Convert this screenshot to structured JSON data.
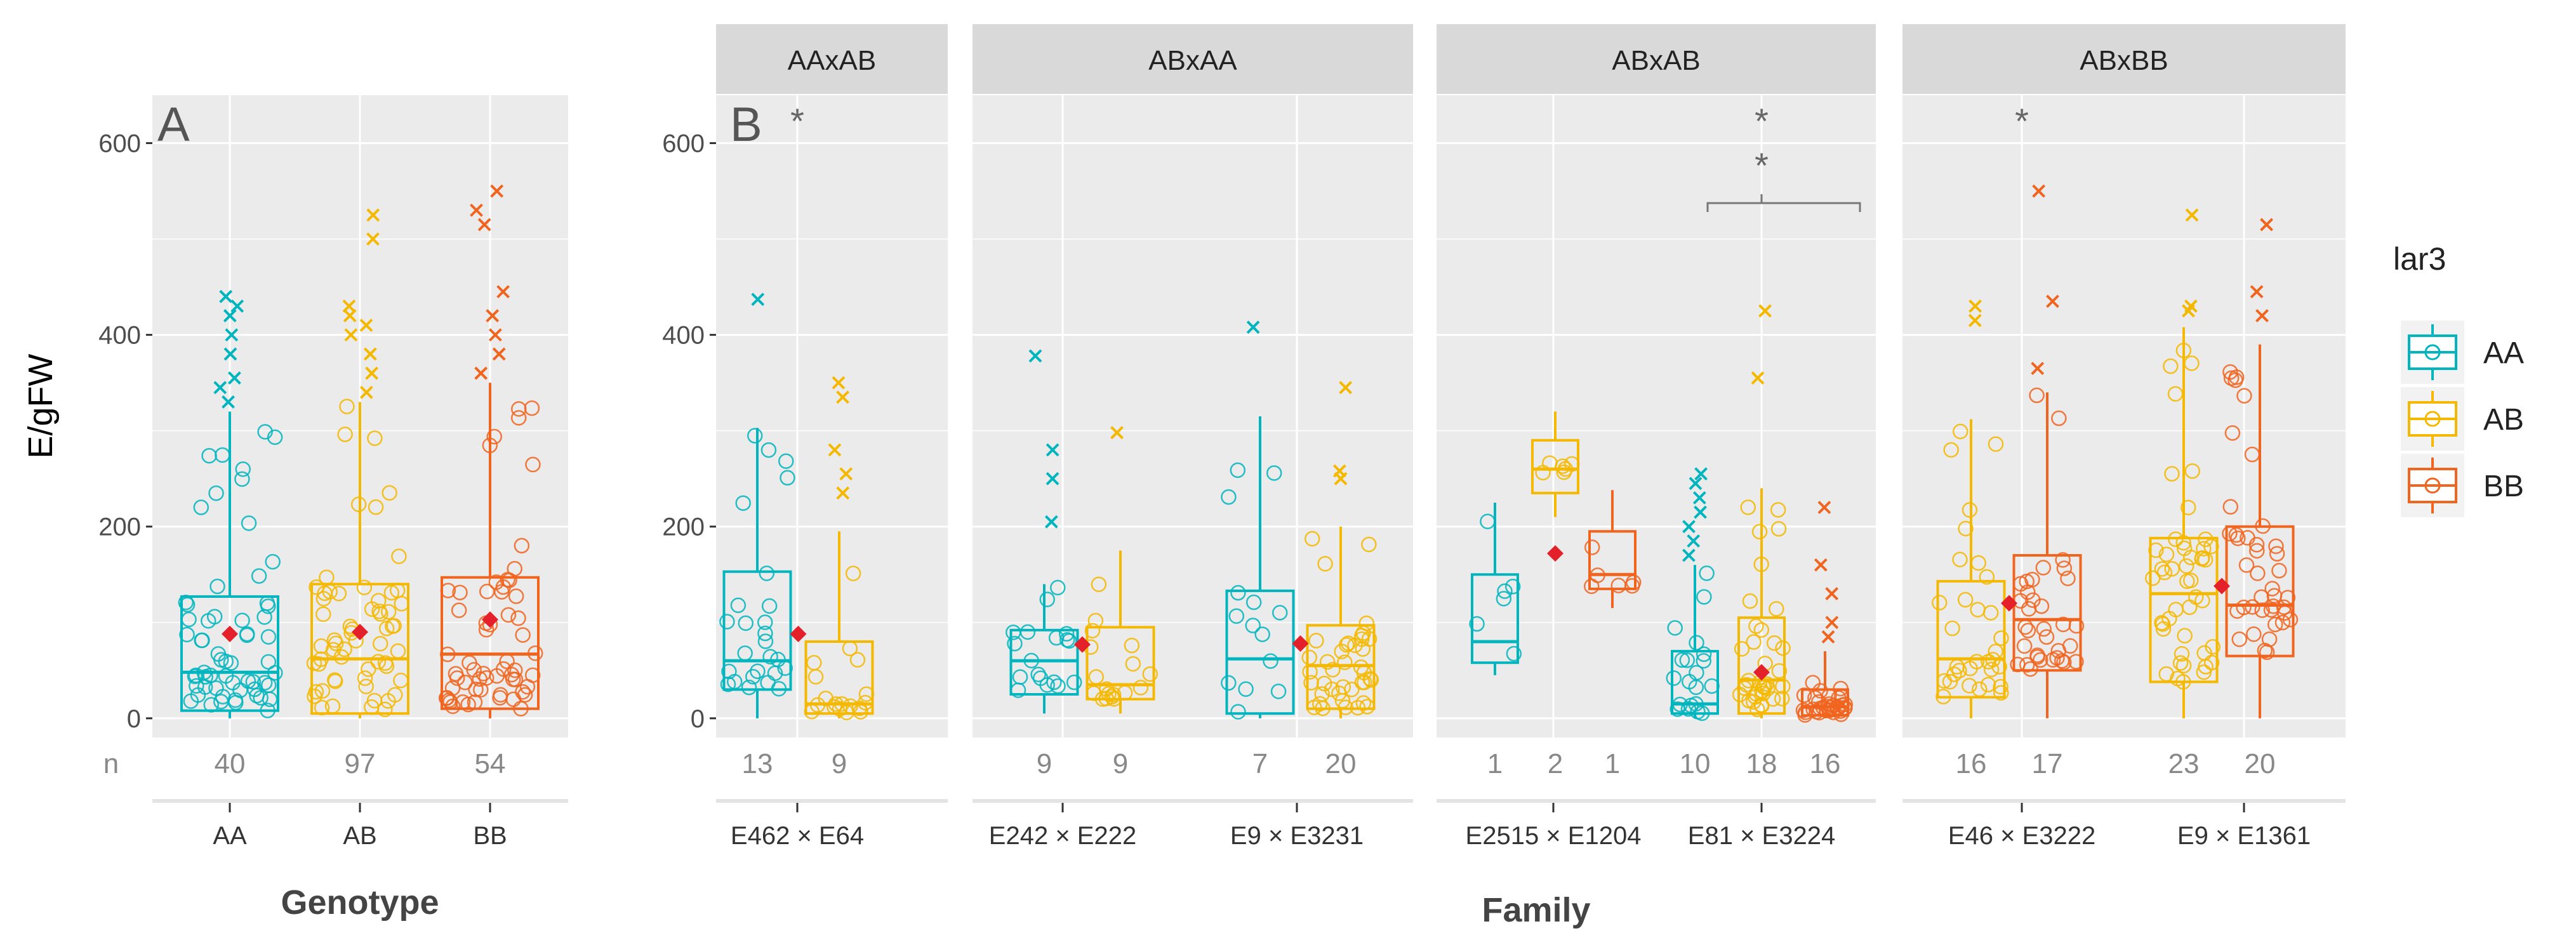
{
  "colors": {
    "AA": "#00B5BE",
    "AB": "#F5B800",
    "BB": "#F0641E",
    "mean": "#E4202A",
    "panel_bg": "#EBEBEB",
    "strip_bg": "#D9D9D9",
    "grid": "#FFFFFF",
    "text": "#4D4D4D"
  },
  "chart_data": [
    {
      "type": "box",
      "panel_label": "A",
      "title": "",
      "xlabel": "Genotype",
      "ylabel": "E/gFW",
      "ylim": [
        -20,
        650
      ],
      "yticks": [
        0,
        200,
        400,
        600
      ],
      "n_label": "n",
      "categories": [
        "AA",
        "AB",
        "BB"
      ],
      "series": [
        {
          "genotype": "AA",
          "n": "40",
          "q1": 8,
          "median": 48,
          "q3": 127,
          "whisker_low": 0,
          "whisker_high": 320,
          "mean": 88,
          "outliers": [
            330,
            345,
            355,
            380,
            400,
            420,
            430,
            440
          ]
        },
        {
          "genotype": "AB",
          "n": "97",
          "q1": 5,
          "median": 62,
          "q3": 140,
          "whisker_low": 0,
          "whisker_high": 330,
          "mean": 90,
          "outliers": [
            340,
            360,
            380,
            400,
            410,
            420,
            430,
            500,
            525
          ]
        },
        {
          "genotype": "BB",
          "n": "54",
          "q1": 10,
          "median": 67,
          "q3": 147,
          "whisker_low": 0,
          "whisker_high": 350,
          "mean": 103,
          "outliers": [
            360,
            380,
            400,
            420,
            445,
            515,
            530,
            550
          ]
        }
      ]
    },
    {
      "type": "box",
      "panel_label": "B",
      "title": "",
      "xlabel": "Family",
      "ylabel": "",
      "ylim": [
        -20,
        650
      ],
      "yticks": [
        0,
        200,
        400,
        600
      ],
      "legend": {
        "title": "lar3",
        "entries": [
          "AA",
          "AB",
          "BB"
        ],
        "position": "right"
      },
      "facets": [
        {
          "label": "AAxAB",
          "families": [
            {
              "name": "E462 × E64",
              "significance": [
                "*"
              ],
              "bracket": false,
              "boxes": [
                {
                  "genotype": "AA",
                  "n": "13",
                  "q1": 30,
                  "median": 60,
                  "q3": 153,
                  "whisker_low": 0,
                  "whisker_high": 303,
                  "mean": null,
                  "outliers": [
                    437
                  ]
                },
                {
                  "genotype": "AB",
                  "n": "9",
                  "q1": 5,
                  "median": 15,
                  "q3": 80,
                  "whisker_low": 0,
                  "whisker_high": 195,
                  "mean": null,
                  "outliers": [
                    235,
                    255,
                    280,
                    335,
                    350
                  ]
                }
              ],
              "family_mean": 88
            }
          ]
        },
        {
          "label": "ABxAA",
          "families": [
            {
              "name": "E242 × E222",
              "significance": [],
              "bracket": false,
              "boxes": [
                {
                  "genotype": "AA",
                  "n": "9",
                  "q1": 25,
                  "median": 60,
                  "q3": 92,
                  "whisker_low": 5,
                  "whisker_high": 140,
                  "mean": null,
                  "outliers": [
                    205,
                    250,
                    280,
                    378
                  ]
                },
                {
                  "genotype": "AB",
                  "n": "9",
                  "q1": 20,
                  "median": 35,
                  "q3": 95,
                  "whisker_low": 5,
                  "whisker_high": 175,
                  "mean": null,
                  "outliers": [
                    298
                  ]
                }
              ],
              "family_mean": 77
            },
            {
              "name": "E9 × E3231",
              "significance": [],
              "bracket": false,
              "boxes": [
                {
                  "genotype": "AA",
                  "n": "7",
                  "q1": 5,
                  "median": 62,
                  "q3": 133,
                  "whisker_low": 0,
                  "whisker_high": 315,
                  "mean": null,
                  "outliers": [
                    408
                  ]
                },
                {
                  "genotype": "AB",
                  "n": "20",
                  "q1": 10,
                  "median": 55,
                  "q3": 97,
                  "whisker_low": 0,
                  "whisker_high": 200,
                  "mean": null,
                  "outliers": [
                    250,
                    258,
                    345
                  ]
                }
              ],
              "family_mean": 78
            }
          ]
        },
        {
          "label": "ABxAB",
          "families": [
            {
              "name": "E2515 × E1204",
              "significance": [],
              "bracket": false,
              "boxes": [
                {
                  "genotype": "AA",
                  "n": "1",
                  "q1": 58,
                  "median": 80,
                  "q3": 150,
                  "whisker_low": 45,
                  "whisker_high": 225,
                  "mean": null,
                  "outliers": []
                },
                {
                  "genotype": "AB",
                  "n": "2",
                  "q1": 235,
                  "median": 260,
                  "q3": 290,
                  "whisker_low": 210,
                  "whisker_high": 320,
                  "mean": null,
                  "outliers": []
                },
                {
                  "genotype": "BB",
                  "n": "1",
                  "q1": 135,
                  "median": 150,
                  "q3": 195,
                  "whisker_low": 115,
                  "whisker_high": 238,
                  "mean": null,
                  "outliers": []
                }
              ],
              "family_mean": 172
            },
            {
              "name": "E81 × E3224",
              "significance": [
                "*",
                "*"
              ],
              "bracket": true,
              "boxes": [
                {
                  "genotype": "AA",
                  "n": "10",
                  "q1": 5,
                  "median": 15,
                  "q3": 70,
                  "whisker_low": 0,
                  "whisker_high": 160,
                  "mean": null,
                  "outliers": [
                    170,
                    185,
                    200,
                    215,
                    230,
                    245,
                    255
                  ]
                },
                {
                  "genotype": "AB",
                  "n": "18",
                  "q1": 5,
                  "median": 40,
                  "q3": 105,
                  "whisker_low": 0,
                  "whisker_high": 240,
                  "mean": null,
                  "outliers": [
                    355,
                    425
                  ]
                },
                {
                  "genotype": "BB",
                  "n": "16",
                  "q1": 3,
                  "median": 12,
                  "q3": 30,
                  "whisker_low": 0,
                  "whisker_high": 70,
                  "mean": null,
                  "outliers": [
                    85,
                    100,
                    130,
                    160,
                    220
                  ]
                }
              ],
              "family_mean": 48
            }
          ]
        },
        {
          "label": "ABxBB",
          "families": [
            {
              "name": "E46 × E3222",
              "significance": [
                "*"
              ],
              "bracket": false,
              "boxes": [
                {
                  "genotype": "AB",
                  "n": "16",
                  "q1": 22,
                  "median": 62,
                  "q3": 143,
                  "whisker_low": 0,
                  "whisker_high": 312,
                  "mean": null,
                  "outliers": [
                    415,
                    430
                  ]
                },
                {
                  "genotype": "BB",
                  "n": "17",
                  "q1": 50,
                  "median": 103,
                  "q3": 170,
                  "whisker_low": 0,
                  "whisker_high": 340,
                  "mean": null,
                  "outliers": [
                    365,
                    435,
                    550
                  ]
                }
              ],
              "family_mean": 120
            },
            {
              "name": "E9 × E1361",
              "significance": [],
              "bracket": false,
              "boxes": [
                {
                  "genotype": "AB",
                  "n": "23",
                  "q1": 38,
                  "median": 130,
                  "q3": 188,
                  "whisker_low": 0,
                  "whisker_high": 408,
                  "mean": null,
                  "outliers": [
                    425,
                    430,
                    525
                  ]
                },
                {
                  "genotype": "BB",
                  "n": "20",
                  "q1": 65,
                  "median": 118,
                  "q3": 200,
                  "whisker_low": 0,
                  "whisker_high": 390,
                  "mean": null,
                  "outliers": [
                    420,
                    445,
                    515
                  ]
                }
              ],
              "family_mean": 138
            }
          ]
        }
      ]
    }
  ]
}
